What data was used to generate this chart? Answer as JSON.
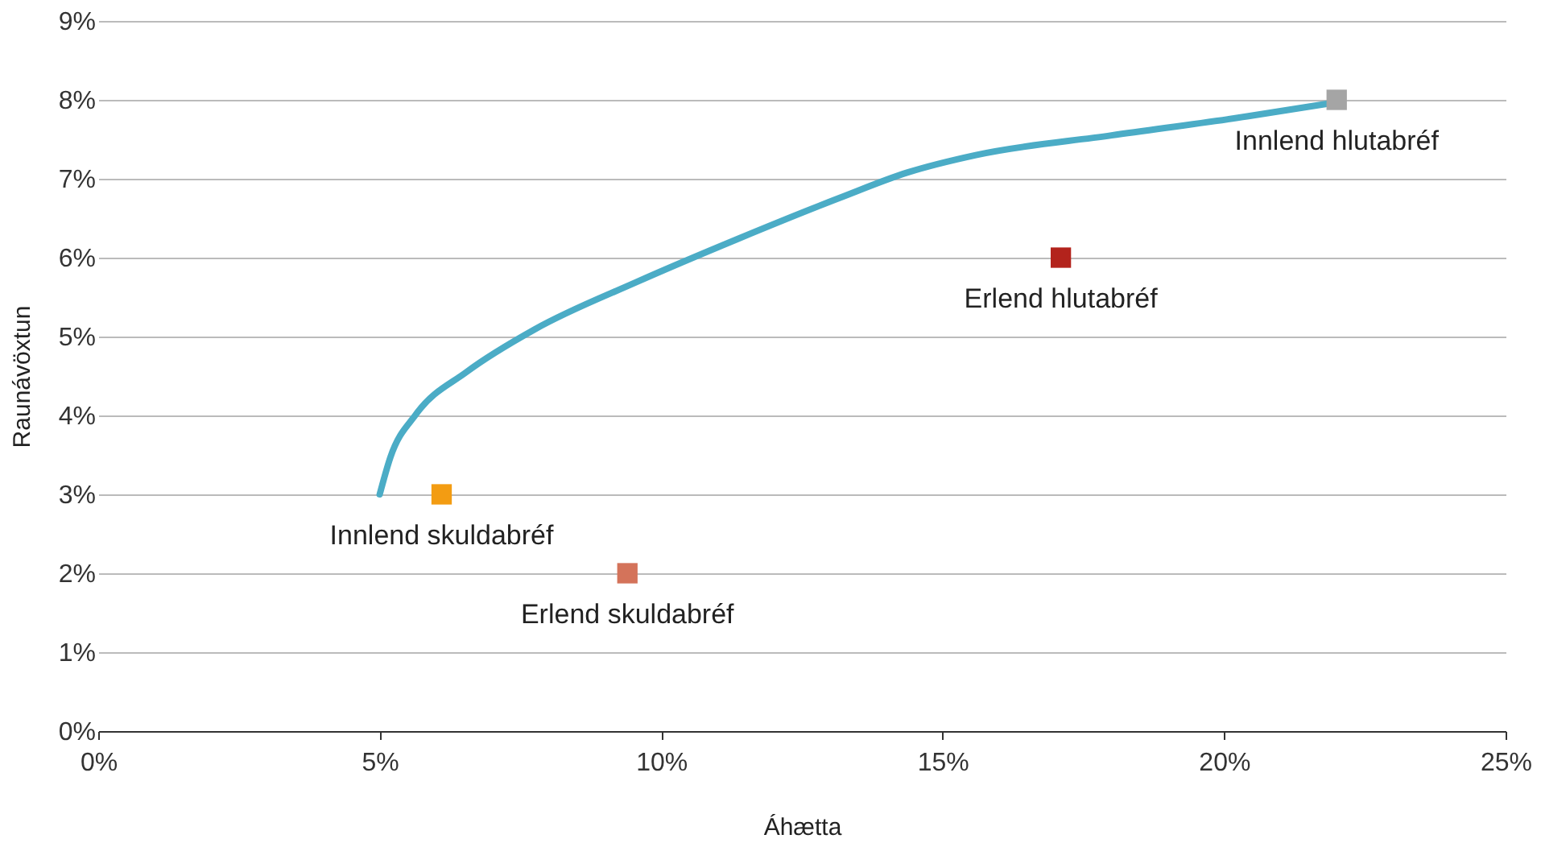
{
  "chart_data": {
    "type": "scatter",
    "xlabel": "Áhætta",
    "ylabel": "Raunávöxtun",
    "xlim": [
      0,
      25
    ],
    "ylim": [
      0,
      9
    ],
    "xticks": [
      {
        "value": 0,
        "label": "0%"
      },
      {
        "value": 5,
        "label": "5%"
      },
      {
        "value": 10,
        "label": "10%"
      },
      {
        "value": 15,
        "label": "15%"
      },
      {
        "value": 20,
        "label": "20%"
      },
      {
        "value": 25,
        "label": "25%"
      }
    ],
    "yticks": [
      {
        "value": 0,
        "label": "0%"
      },
      {
        "value": 1,
        "label": "1%"
      },
      {
        "value": 2,
        "label": "2%"
      },
      {
        "value": 3,
        "label": "3%"
      },
      {
        "value": 4,
        "label": "4%"
      },
      {
        "value": 5,
        "label": "5%"
      },
      {
        "value": 6,
        "label": "6%"
      },
      {
        "value": 7,
        "label": "7%"
      },
      {
        "value": 8,
        "label": "8%"
      },
      {
        "value": 9,
        "label": "9%"
      }
    ],
    "grid": "y",
    "series": [
      {
        "type": "line",
        "color": "#4bacc6",
        "x": [
          5.0,
          5.19,
          5.64,
          6.54,
          7.75,
          9.56,
          11.37,
          13.18,
          14.38,
          15.59,
          18.0,
          20.41,
          21.92
        ],
        "values": [
          3.0,
          3.47,
          4.01,
          4.55,
          5.09,
          5.69,
          6.24,
          6.76,
          7.08,
          7.3,
          7.55,
          7.79,
          7.96
        ]
      },
      {
        "name": "Innlend hlutabréf",
        "marker": "square",
        "color": "#a5a5a5",
        "x": [
          22.0
        ],
        "values": [
          8.0
        ]
      },
      {
        "name": "Erlend hlutabréf",
        "marker": "square",
        "color": "#b3231c",
        "x": [
          17.1
        ],
        "values": [
          6.0
        ]
      },
      {
        "name": "Innlend skuldabréf",
        "marker": "square",
        "color": "#f39c12",
        "x": [
          6.1
        ],
        "values": [
          3.0
        ]
      },
      {
        "name": "Erlend skuldabréf",
        "marker": "square",
        "color": "#d4735a",
        "x": [
          9.4
        ],
        "values": [
          2.0
        ]
      }
    ]
  }
}
